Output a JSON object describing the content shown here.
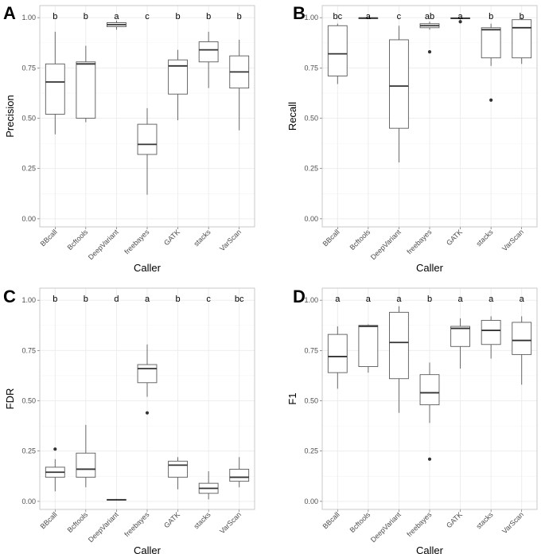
{
  "chart_data": [
    {
      "type": "box",
      "panel": "A",
      "ylabel": "Precision",
      "xlabel": "Caller",
      "ylim": [
        -0.04,
        1.06
      ],
      "yticks": [
        "0.00",
        "0.25",
        "0.50",
        "0.75",
        "1.00"
      ],
      "categories": [
        "BBcall",
        "Bcftools",
        "DeepVariant",
        "freebayes",
        "GATK",
        "stacks",
        "VarScan"
      ],
      "significance": [
        "b",
        "b",
        "a",
        "c",
        "b",
        "b",
        "b"
      ],
      "boxes": [
        {
          "min": 0.42,
          "q1": 0.52,
          "median": 0.68,
          "q3": 0.77,
          "max": 0.93,
          "outliers": []
        },
        {
          "min": 0.48,
          "q1": 0.5,
          "median": 0.77,
          "q3": 0.78,
          "max": 0.86,
          "outliers": []
        },
        {
          "min": 0.94,
          "q1": 0.955,
          "median": 0.965,
          "q3": 0.975,
          "max": 0.985,
          "outliers": []
        },
        {
          "min": 0.12,
          "q1": 0.32,
          "median": 0.37,
          "q3": 0.47,
          "max": 0.55,
          "outliers": []
        },
        {
          "min": 0.49,
          "q1": 0.62,
          "median": 0.76,
          "q3": 0.79,
          "max": 0.84,
          "outliers": []
        },
        {
          "min": 0.65,
          "q1": 0.78,
          "median": 0.84,
          "q3": 0.88,
          "max": 0.93,
          "outliers": []
        },
        {
          "min": 0.44,
          "q1": 0.65,
          "median": 0.73,
          "q3": 0.81,
          "max": 0.89,
          "outliers": []
        }
      ]
    },
    {
      "type": "box",
      "panel": "B",
      "ylabel": "Recall",
      "xlabel": "Caller",
      "ylim": [
        -0.04,
        1.06
      ],
      "yticks": [
        "0.00",
        "0.25",
        "0.50",
        "0.75",
        "1.00"
      ],
      "categories": [
        "BBcall",
        "Bcftools",
        "DeepVariant",
        "freebayes",
        "GATK",
        "stacks",
        "VarScan"
      ],
      "significance": [
        "bc",
        "a",
        "c",
        "ab",
        "a",
        "b",
        "b"
      ],
      "boxes": [
        {
          "min": 0.67,
          "q1": 0.71,
          "median": 0.82,
          "q3": 0.96,
          "max": 0.97,
          "outliers": []
        },
        {
          "min": 0.995,
          "q1": 0.997,
          "median": 0.998,
          "q3": 0.999,
          "max": 1.0,
          "outliers": []
        },
        {
          "min": 0.28,
          "q1": 0.45,
          "median": 0.66,
          "q3": 0.89,
          "max": 0.96,
          "outliers": []
        },
        {
          "min": 0.94,
          "q1": 0.95,
          "median": 0.96,
          "q3": 0.97,
          "max": 0.98,
          "outliers": [
            0.83
          ]
        },
        {
          "min": 0.99,
          "q1": 0.995,
          "median": 0.997,
          "q3": 0.999,
          "max": 1.0,
          "outliers": [
            0.98
          ]
        },
        {
          "min": 0.76,
          "q1": 0.8,
          "median": 0.94,
          "q3": 0.95,
          "max": 0.97,
          "outliers": [
            0.59
          ]
        },
        {
          "min": 0.77,
          "q1": 0.8,
          "median": 0.95,
          "q3": 0.99,
          "max": 1.0,
          "outliers": []
        }
      ]
    },
    {
      "type": "box",
      "panel": "C",
      "ylabel": "FDR",
      "xlabel": "Caller",
      "ylim": [
        -0.04,
        1.06
      ],
      "yticks": [
        "0.00",
        "0.25",
        "0.50",
        "0.75",
        "1.00"
      ],
      "categories": [
        "BBcall",
        "Bcftools",
        "DeepVariant",
        "freebayes",
        "GATK",
        "stacks",
        "VarScan"
      ],
      "significance": [
        "b",
        "b",
        "d",
        "a",
        "b",
        "c",
        "bc"
      ],
      "boxes": [
        {
          "min": 0.05,
          "q1": 0.12,
          "median": 0.145,
          "q3": 0.17,
          "max": 0.21,
          "outliers": [
            0.26
          ]
        },
        {
          "min": 0.07,
          "q1": 0.12,
          "median": 0.16,
          "q3": 0.24,
          "max": 0.38,
          "outliers": []
        },
        {
          "min": 0.005,
          "q1": 0.007,
          "median": 0.008,
          "q3": 0.01,
          "max": 0.012,
          "outliers": []
        },
        {
          "min": 0.52,
          "q1": 0.59,
          "median": 0.66,
          "q3": 0.68,
          "max": 0.78,
          "outliers": [
            0.44
          ]
        },
        {
          "min": 0.06,
          "q1": 0.12,
          "median": 0.18,
          "q3": 0.2,
          "max": 0.22,
          "outliers": []
        },
        {
          "min": 0.01,
          "q1": 0.04,
          "median": 0.065,
          "q3": 0.09,
          "max": 0.15,
          "outliers": []
        },
        {
          "min": 0.07,
          "q1": 0.1,
          "median": 0.12,
          "q3": 0.16,
          "max": 0.22,
          "outliers": []
        }
      ]
    },
    {
      "type": "box",
      "panel": "D",
      "ylabel": "F1",
      "xlabel": "Caller",
      "ylim": [
        -0.04,
        1.06
      ],
      "yticks": [
        "0.00",
        "0.25",
        "0.50",
        "0.75",
        "1.00"
      ],
      "categories": [
        "BBcall",
        "Bcftools",
        "DeepVariant",
        "freebayes",
        "GATK",
        "stacks",
        "VarScan"
      ],
      "significance": [
        "a",
        "a",
        "a",
        "b",
        "a",
        "a",
        "a"
      ],
      "boxes": [
        {
          "min": 0.56,
          "q1": 0.64,
          "median": 0.72,
          "q3": 0.83,
          "max": 0.87,
          "outliers": []
        },
        {
          "min": 0.64,
          "q1": 0.67,
          "median": 0.87,
          "q3": 0.875,
          "max": 0.88,
          "outliers": []
        },
        {
          "min": 0.44,
          "q1": 0.61,
          "median": 0.79,
          "q3": 0.94,
          "max": 0.97,
          "outliers": []
        },
        {
          "min": 0.39,
          "q1": 0.48,
          "median": 0.54,
          "q3": 0.63,
          "max": 0.69,
          "outliers": [
            0.21
          ]
        },
        {
          "min": 0.66,
          "q1": 0.77,
          "median": 0.86,
          "q3": 0.87,
          "max": 0.91,
          "outliers": []
        },
        {
          "min": 0.71,
          "q1": 0.78,
          "median": 0.85,
          "q3": 0.9,
          "max": 0.92,
          "outliers": []
        },
        {
          "min": 0.58,
          "q1": 0.73,
          "median": 0.8,
          "q3": 0.89,
          "max": 0.92,
          "outliers": []
        }
      ]
    }
  ]
}
